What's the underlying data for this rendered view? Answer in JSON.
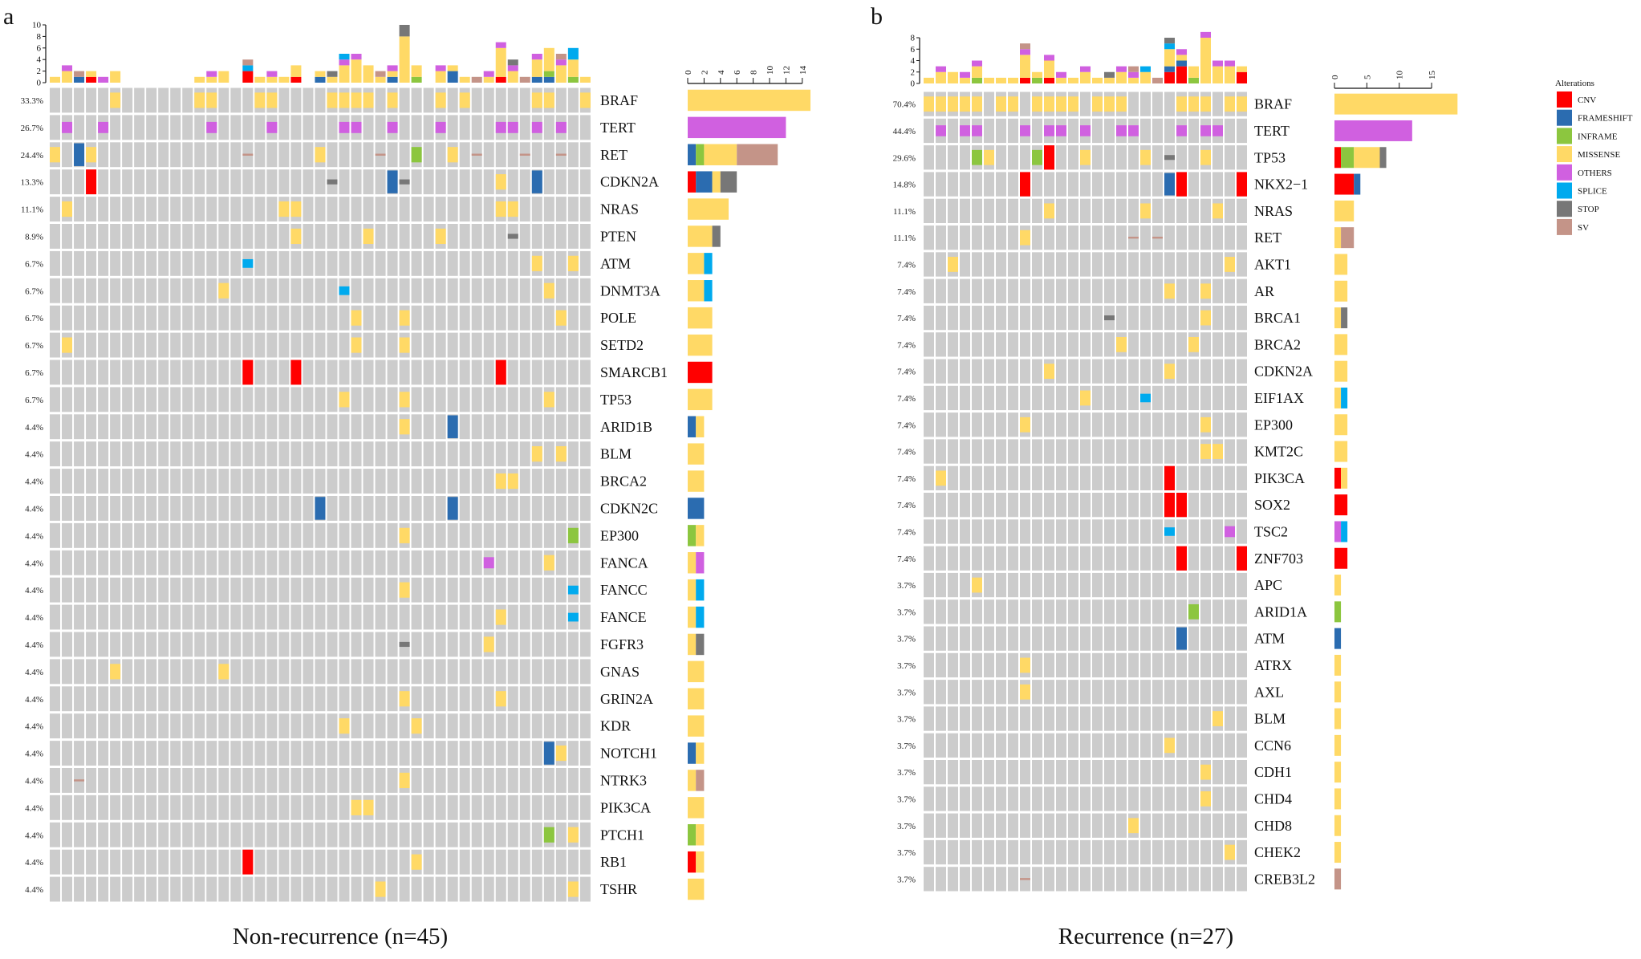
{
  "chart_data": {
    "type": "heatmap",
    "subtype": "oncoplot",
    "legend": {
      "title": "Alterations",
      "placement": "right",
      "items": [
        {
          "code": "C",
          "label": "CNV",
          "color": "#ff0000"
        },
        {
          "code": "F",
          "label": "FRAMESHIFT",
          "color": "#2b6cb0"
        },
        {
          "code": "I",
          "label": "INFRAME",
          "color": "#8cc63f"
        },
        {
          "code": "M",
          "label": "MISSENSE",
          "color": "#ffd966"
        },
        {
          "code": "O",
          "label": "OTHERS",
          "color": "#d060e0"
        },
        {
          "code": "P",
          "label": "SPLICE",
          "color": "#00aaee"
        },
        {
          "code": "S",
          "label": "STOP",
          "color": "#777777"
        },
        {
          "code": "V",
          "label": "SV",
          "color": "#c49488"
        }
      ]
    },
    "background_cell_color": "#cccccc",
    "panels": [
      {
        "letter": "a",
        "caption": "Non-recurrence (n=45)",
        "n_samples": 45,
        "tmb_ylim": [
          0,
          10
        ],
        "tmb_ticks": [
          "0",
          "2",
          "4",
          "6",
          "8",
          "10"
        ],
        "gene_bar_xlim": [
          0,
          14
        ],
        "gene_bar_ticks": [
          "0",
          "2",
          "4",
          "6",
          "8",
          "10",
          "12",
          "14"
        ],
        "tmb": [
          "M1",
          "M2 O1",
          "F1 V1",
          "C1 M1",
          "O1",
          "M2",
          "",
          "",
          "",
          "",
          "",
          "",
          "M1",
          "M1 O1",
          "M2",
          "",
          "C2 P1 V1",
          "M1",
          "M1 O1",
          "M1",
          "C1 M2",
          "",
          "F1 M1",
          "M1 S1",
          "M3 O1 P1",
          "M4 O1",
          "M3",
          "M1 V1",
          "F1 M1 O1",
          "M8 S2",
          "I1 M2",
          "",
          "M2 O1",
          "F2 M1",
          "M1",
          "V1",
          "M1 O1",
          "C1 M5 O1",
          "M2 O1 S1",
          "V1",
          "F1 M3 O1",
          "F1 I1 M4",
          "M3 O1 V1",
          "I1 M3 P2",
          "M1"
        ],
        "genes": [
          {
            "gene": "BRAF",
            "pct": "33.3%",
            "alts": "5M 12M 13M 17M 18M 23M 24M 25M 26M 28M 32M 34M 40M 41M 44M"
          },
          {
            "gene": "TERT",
            "pct": "26.7%",
            "alts": "1O 4O 13O 18O 24O 25O 28O 32O 37O 38O 40O 42O"
          },
          {
            "gene": "RET",
            "pct": "24.4%",
            "alts": "0M 2F 3M 16V 22M 27V 30I 33M 35V 39V 42V"
          },
          {
            "gene": "CDKN2A",
            "pct": "13.3%",
            "alts": "3C 23S 28F 29S 37M 40F"
          },
          {
            "gene": "NRAS",
            "pct": "11.1%",
            "alts": "1M 19M 20M 37M 38M"
          },
          {
            "gene": "PTEN",
            "pct": "8.9%",
            "alts": "20M 26M 32M 38S"
          },
          {
            "gene": "ATM",
            "pct": "6.7%",
            "alts": "16P 40M 43M"
          },
          {
            "gene": "DNMT3A",
            "pct": "6.7%",
            "alts": "14M 24P 41M"
          },
          {
            "gene": "POLE",
            "pct": "6.7%",
            "alts": "25M 29M 42M"
          },
          {
            "gene": "SETD2",
            "pct": "6.7%",
            "alts": "1M 25M 29M"
          },
          {
            "gene": "SMARCB1",
            "pct": "6.7%",
            "alts": "16C 20C 37C"
          },
          {
            "gene": "TP53",
            "pct": "6.7%",
            "alts": "24M 29M 41M"
          },
          {
            "gene": "ARID1B",
            "pct": "4.4%",
            "alts": "29M 33F"
          },
          {
            "gene": "BLM",
            "pct": "4.4%",
            "alts": "40M 42M"
          },
          {
            "gene": "BRCA2",
            "pct": "4.4%",
            "alts": "37M 38M"
          },
          {
            "gene": "CDKN2C",
            "pct": "4.4%",
            "alts": "22F 33F"
          },
          {
            "gene": "EP300",
            "pct": "4.4%",
            "alts": "29M 43I"
          },
          {
            "gene": "FANCA",
            "pct": "4.4%",
            "alts": "36O 41M"
          },
          {
            "gene": "FANCC",
            "pct": "4.4%",
            "alts": "29M 43P"
          },
          {
            "gene": "FANCE",
            "pct": "4.4%",
            "alts": "37M 43P"
          },
          {
            "gene": "FGFR3",
            "pct": "4.4%",
            "alts": "29S 36M"
          },
          {
            "gene": "GNAS",
            "pct": "4.4%",
            "alts": "5M 14M"
          },
          {
            "gene": "GRIN2A",
            "pct": "4.4%",
            "alts": "29M 37M"
          },
          {
            "gene": "KDR",
            "pct": "4.4%",
            "alts": "24M 30M"
          },
          {
            "gene": "NOTCH1",
            "pct": "4.4%",
            "alts": "41F 42M"
          },
          {
            "gene": "NTRK3",
            "pct": "4.4%",
            "alts": "2V 29M"
          },
          {
            "gene": "PIK3CA",
            "pct": "4.4%",
            "alts": "25M 26M"
          },
          {
            "gene": "PTCH1",
            "pct": "4.4%",
            "alts": "41I 43M"
          },
          {
            "gene": "RB1",
            "pct": "4.4%",
            "alts": "16C 30M"
          },
          {
            "gene": "TSHR",
            "pct": "4.4%",
            "alts": "27M 43M"
          }
        ]
      },
      {
        "letter": "b",
        "caption": "Recurrence (n=27)",
        "n_samples": 27,
        "tmb_ylim": [
          0,
          8
        ],
        "tmb_ticks": [
          "0",
          "2",
          "4",
          "6",
          "8"
        ],
        "gene_bar_xlim": [
          0,
          15
        ],
        "gene_bar_ticks": [
          "0",
          "5",
          "10",
          "15"
        ],
        "tmb": [
          "M1",
          "M2 O1",
          "M2",
          "M1 O1",
          "I1 M2 O1",
          "M1",
          "M1",
          "M1",
          "C1 M4 O1 V1",
          "I1 M1",
          "C1 M3 O1",
          "M1 O1",
          "M1",
          "M2 O1",
          "M1",
          "M1 S1",
          "M2 O1",
          "M1 O1 V1",
          "M2 P1",
          "V1",
          "C2 F1 M3 P1 S1",
          "C3 F1 M1 O1",
          "I1 M2",
          "M8 O1",
          "M3 O1",
          "M3 O1",
          "C2 M1"
        ],
        "genes": [
          {
            "gene": "BRAF",
            "pct": "70.4%",
            "alts": "0M 1M 2M 3M 4M 6M 7M 9M 10M 11M 12M 14M 15M 16M 21M 22M 23M 25M 26M"
          },
          {
            "gene": "TERT",
            "pct": "44.4%",
            "alts": "1O 3O 4O 8O 10O 11O 13O 16O 17O 21O 23O 24O"
          },
          {
            "gene": "TP53",
            "pct": "29.6%",
            "alts": "4I 5M 9I 10C 13M 18M 20S 23M"
          },
          {
            "gene": "NKX2−1",
            "pct": "14.8%",
            "alts": "8C 20F 21C 26C"
          },
          {
            "gene": "NRAS",
            "pct": "11.1%",
            "alts": "10M 18M 24M"
          },
          {
            "gene": "RET",
            "pct": "11.1%",
            "alts": "8M 17V 19V"
          },
          {
            "gene": "AKT1",
            "pct": "7.4%",
            "alts": "2M 25M"
          },
          {
            "gene": "AR",
            "pct": "7.4%",
            "alts": "20M 23M"
          },
          {
            "gene": "BRCA1",
            "pct": "7.4%",
            "alts": "15S 23M"
          },
          {
            "gene": "BRCA2",
            "pct": "7.4%",
            "alts": "16M 22M"
          },
          {
            "gene": "CDKN2A",
            "pct": "7.4%",
            "alts": "10M 20M"
          },
          {
            "gene": "EIF1AX",
            "pct": "7.4%",
            "alts": "13M 18P"
          },
          {
            "gene": "EP300",
            "pct": "7.4%",
            "alts": "8M 23M"
          },
          {
            "gene": "KMT2C",
            "pct": "7.4%",
            "alts": "23M 24M"
          },
          {
            "gene": "PIK3CA",
            "pct": "7.4%",
            "alts": "1M 20C"
          },
          {
            "gene": "SOX2",
            "pct": "7.4%",
            "alts": "20C 21C"
          },
          {
            "gene": "TSC2",
            "pct": "7.4%",
            "alts": "20P 25O"
          },
          {
            "gene": "ZNF703",
            "pct": "7.4%",
            "alts": "21C 26C"
          },
          {
            "gene": "APC",
            "pct": "3.7%",
            "alts": "4M"
          },
          {
            "gene": "ARID1A",
            "pct": "3.7%",
            "alts": "22I"
          },
          {
            "gene": "ATM",
            "pct": "3.7%",
            "alts": "21F"
          },
          {
            "gene": "ATRX",
            "pct": "3.7%",
            "alts": "8M"
          },
          {
            "gene": "AXL",
            "pct": "3.7%",
            "alts": "8M"
          },
          {
            "gene": "BLM",
            "pct": "3.7%",
            "alts": "24M"
          },
          {
            "gene": "CCN6",
            "pct": "3.7%",
            "alts": "20M"
          },
          {
            "gene": "CDH1",
            "pct": "3.7%",
            "alts": "23M"
          },
          {
            "gene": "CHD4",
            "pct": "3.7%",
            "alts": "23M"
          },
          {
            "gene": "CHD8",
            "pct": "3.7%",
            "alts": "17M"
          },
          {
            "gene": "CHEK2",
            "pct": "3.7%",
            "alts": "25M"
          },
          {
            "gene": "CREB3L2",
            "pct": "3.7%",
            "alts": "8V"
          }
        ]
      }
    ]
  }
}
